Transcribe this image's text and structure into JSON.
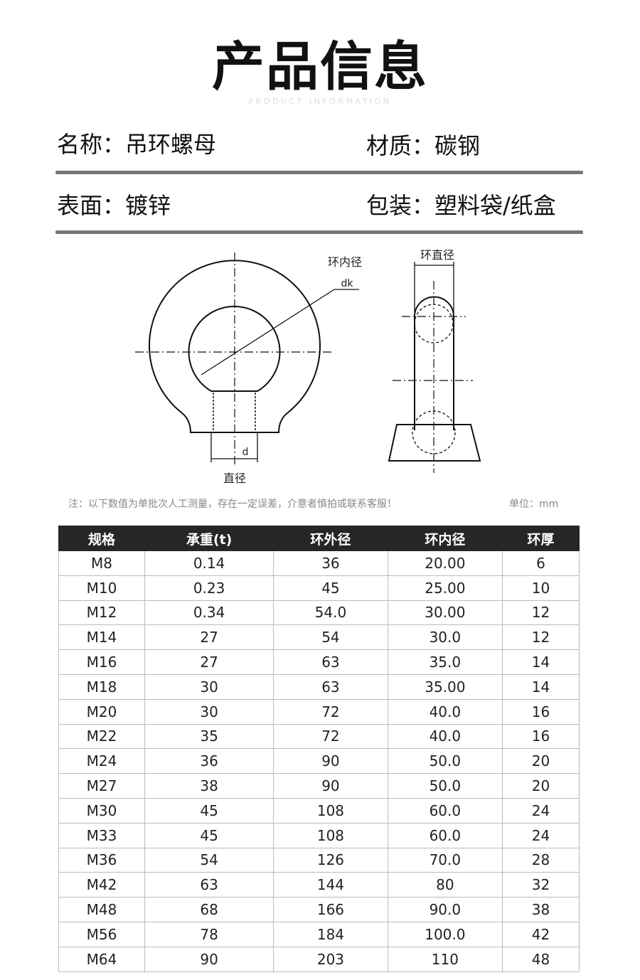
{
  "header": {
    "title": "产品信息",
    "subtitle": "PRODUCT INFORMATION"
  },
  "info": {
    "name": "名称：吊环螺母",
    "material": "材质：碳钢",
    "surface": "表面：镀锌",
    "packaging": "包装：塑料袋/纸盒"
  },
  "diagram": {
    "inner_diameter_label": "环内径",
    "dk_label": "dk",
    "d_label": "d",
    "diameter_label": "直径",
    "ring_diameter_label": "环直径"
  },
  "note": "注：以下数值为单批次人工测量，存在一定误差，介意者慎拍或联系客服！",
  "unit": "单位：mm",
  "table": {
    "headers": [
      "规格",
      "承重(t)",
      "环外径",
      "环内径",
      "环厚"
    ],
    "rows": [
      [
        "M8",
        "0.14",
        "36",
        "20.00",
        "6"
      ],
      [
        "M10",
        "0.23",
        "45",
        "25.00",
        "10"
      ],
      [
        "M12",
        "0.34",
        "54.0",
        "30.00",
        "12"
      ],
      [
        "M14",
        "27",
        "54",
        "30.0",
        "12"
      ],
      [
        "M16",
        "27",
        "63",
        "35.0",
        "14"
      ],
      [
        "M18",
        "30",
        "63",
        "35.00",
        "14"
      ],
      [
        "M20",
        "30",
        "72",
        "40.0",
        "16"
      ],
      [
        "M22",
        "35",
        "72",
        "40.0",
        "16"
      ],
      [
        "M24",
        "36",
        "90",
        "50.0",
        "20"
      ],
      [
        "M27",
        "38",
        "90",
        "50.0",
        "20"
      ],
      [
        "M30",
        "45",
        "108",
        "60.0",
        "24"
      ],
      [
        "M33",
        "45",
        "108",
        "60.0",
        "24"
      ],
      [
        "M36",
        "54",
        "126",
        "70.0",
        "28"
      ],
      [
        "M42",
        "63",
        "144",
        "80",
        "32"
      ],
      [
        "M48",
        "68",
        "166",
        "90.0",
        "38"
      ],
      [
        "M56",
        "78",
        "184",
        "100.0",
        "42"
      ],
      [
        "M64",
        "90",
        "203",
        "110",
        "48"
      ]
    ]
  }
}
